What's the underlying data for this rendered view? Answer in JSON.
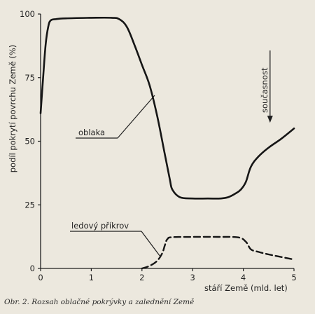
{
  "chart_data": {
    "type": "line",
    "xlabel": "stáří Země (mld. let)",
    "ylabel": "podíl pokrytí povrchu Země (%)",
    "xlim": [
      0,
      5
    ],
    "ylim": [
      0,
      100
    ],
    "x_ticks": [
      "0",
      "1",
      "2",
      "3",
      "4",
      "5"
    ],
    "y_ticks": [
      "0",
      "25",
      "50",
      "75",
      "100"
    ],
    "grid": false,
    "series": [
      {
        "name": "oblaka",
        "style": "solid",
        "x": [
          0,
          0.05,
          0.1,
          0.15,
          0.2,
          0.3,
          0.5,
          1.0,
          1.4,
          1.55,
          1.7,
          1.85,
          2.0,
          2.15,
          2.3,
          2.45,
          2.55,
          2.6,
          2.75,
          3.0,
          3.3,
          3.55,
          3.7,
          3.85,
          3.95,
          4.05,
          4.15,
          4.3,
          4.5,
          4.75,
          5.0
        ],
        "y": [
          61,
          75,
          88,
          95,
          97.5,
          98,
          98.3,
          98.5,
          98.5,
          98,
          95,
          88,
          80,
          72,
          60,
          45,
          35,
          31,
          28,
          27.5,
          27.5,
          27.5,
          28,
          29.5,
          31,
          34,
          40,
          44,
          47.5,
          51,
          55
        ]
      },
      {
        "name": "ledový příkrov",
        "style": "dashed",
        "x": [
          2.0,
          2.15,
          2.3,
          2.4,
          2.45,
          2.5,
          2.6,
          3.0,
          3.5,
          3.9,
          4.05,
          4.15,
          4.3,
          4.5,
          4.75,
          5.0
        ],
        "y": [
          0,
          1,
          3,
          6,
          9,
          11.5,
          12.3,
          12.4,
          12.4,
          12.2,
          10.5,
          7.5,
          6.5,
          5.5,
          4.5,
          3.5
        ]
      }
    ],
    "annotations": [
      {
        "text": "oblaka",
        "target_x": 2.25,
        "target_y": 68
      },
      {
        "text": "ledový příkrov",
        "target_x": 2.35,
        "target_y": 5
      },
      {
        "text": "současnost",
        "arrow_to_x": 4.5,
        "arrow_to_y": 57
      }
    ]
  },
  "caption": "Obr. 2. Rozsah oblačné pokrývky a zalednění Země"
}
